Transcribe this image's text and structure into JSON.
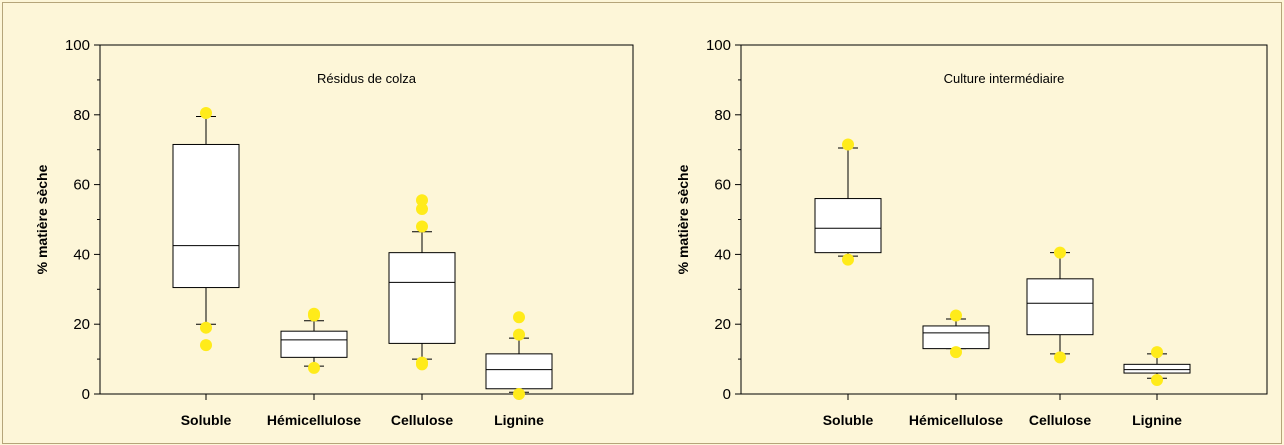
{
  "chart_data": [
    {
      "type": "box",
      "title": "Résidus de colza",
      "ylabel": "% matière sèche",
      "ylim": [
        0,
        100
      ],
      "yticks": [
        0,
        20,
        40,
        60,
        80,
        100
      ],
      "categories": [
        "Soluble",
        "Hémicellulose",
        "Cellulose",
        "Lignine"
      ],
      "boxes": [
        {
          "q1": 30.5,
          "median": 42.5,
          "q3": 71.5,
          "whisker_low": 20,
          "whisker_high": 79.5,
          "outliers": [
            80.5,
            19,
            14
          ]
        },
        {
          "q1": 10.5,
          "median": 15.5,
          "q3": 18,
          "whisker_low": 8,
          "whisker_high": 21,
          "outliers": [
            23,
            22.5,
            7.5
          ]
        },
        {
          "q1": 14.5,
          "median": 32,
          "q3": 40.5,
          "whisker_low": 10,
          "whisker_high": 46.5,
          "outliers": [
            55.5,
            53,
            48,
            8.5,
            9
          ]
        },
        {
          "q1": 1.5,
          "median": 7,
          "q3": 11.5,
          "whisker_low": 0.5,
          "whisker_high": 16,
          "outliers": [
            22,
            17,
            0
          ]
        }
      ]
    },
    {
      "type": "box",
      "title": "Culture intermédiaire",
      "ylabel": "% matière sèche",
      "ylim": [
        0,
        100
      ],
      "yticks": [
        0,
        20,
        40,
        60,
        80,
        100
      ],
      "categories": [
        "Soluble",
        "Hémicellulose",
        "Cellulose",
        "Lignine"
      ],
      "boxes": [
        {
          "q1": 40.5,
          "median": 47.5,
          "q3": 56,
          "whisker_low": 39.5,
          "whisker_high": 70.5,
          "outliers": [
            71.5,
            38.5
          ]
        },
        {
          "q1": 13,
          "median": 17.5,
          "q3": 19.5,
          "whisker_low": 13,
          "whisker_high": 21.5,
          "outliers": [
            22.5,
            12
          ]
        },
        {
          "q1": 17,
          "median": 26,
          "q3": 33,
          "whisker_low": 11.5,
          "whisker_high": 40.5,
          "outliers": [
            40.5,
            10.5
          ]
        },
        {
          "q1": 6,
          "median": 7,
          "q3": 8.5,
          "whisker_low": 4.5,
          "whisker_high": 11.5,
          "outliers": [
            12,
            4
          ]
        }
      ]
    }
  ]
}
